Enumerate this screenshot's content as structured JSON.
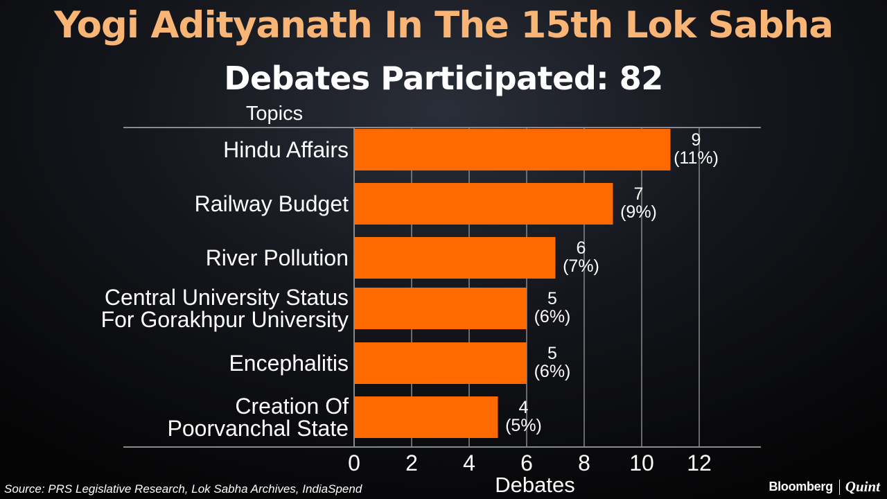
{
  "header": {
    "title": "Yogi Adityanath In The 15th Lok Sabha",
    "subtitle": "Debates Participated: 82"
  },
  "footer": {
    "source": "Source: PRS Legislative Research, Lok Sabha Archives, IndiaSpend",
    "brand_primary": "Bloomberg",
    "brand_secondary": "Quint"
  },
  "colors": {
    "bar": "#ff6a00",
    "title": "#f8b576",
    "text": "#ffffff",
    "grid": "#8a8a8a"
  },
  "chart_data": {
    "type": "bar",
    "orientation": "horizontal",
    "ylabel": "Topics",
    "xlabel": "Debates",
    "categories": [
      [
        "Hindu Affairs"
      ],
      [
        "Railway Budget"
      ],
      [
        "River Pollution"
      ],
      [
        "Central University Status",
        "For Gorakhpur University"
      ],
      [
        "Encephalitis"
      ],
      [
        "Creation Of",
        "Poorvanchal State"
      ]
    ],
    "values": [
      11,
      9,
      7,
      6,
      6,
      5
    ],
    "data_labels": [
      [
        "9",
        "(11%)"
      ],
      [
        "7",
        "(9%)"
      ],
      [
        "6",
        "(7%)"
      ],
      [
        "5",
        "(6%)"
      ],
      [
        "5",
        "(6%)"
      ],
      [
        "4",
        "(5%)"
      ]
    ],
    "xlim": [
      0,
      14
    ],
    "xticks": [
      0,
      2,
      4,
      6,
      8,
      10,
      12
    ],
    "grid": true,
    "legend": "none"
  }
}
